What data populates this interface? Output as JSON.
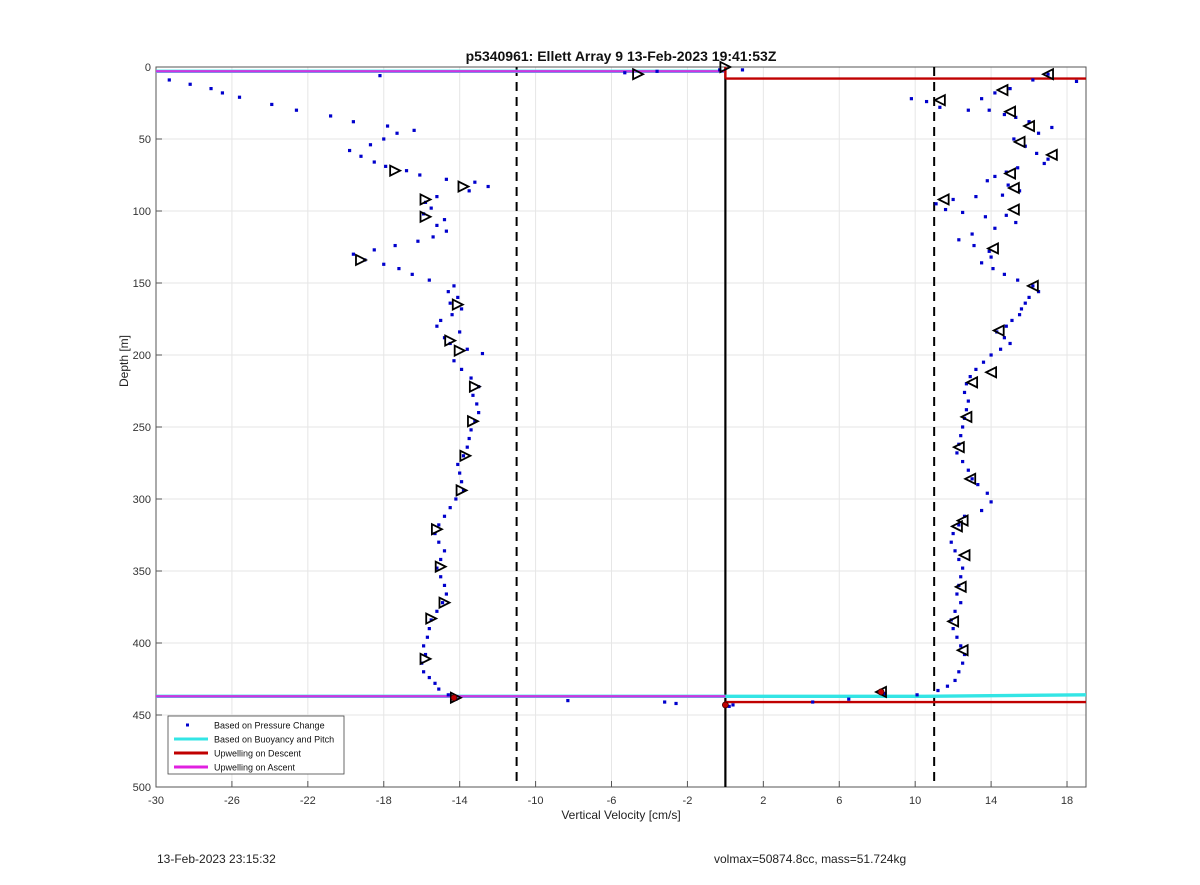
{
  "chart_data": {
    "type": "scatter",
    "title": "p5340961: Ellett Array 9 13-Feb-2023 19:41:53Z",
    "xlabel": "Vertical Velocity [cm/s]",
    "ylabel": "Depth [m]",
    "xlim": [
      -30,
      19
    ],
    "ylim": [
      0,
      500
    ],
    "y_reversed": true,
    "grid": true,
    "legend_position": "bottom-left",
    "xticks": [
      -30,
      -26,
      -22,
      -18,
      -14,
      -10,
      -6,
      -2,
      2,
      6,
      10,
      14,
      18
    ],
    "yticks": [
      0,
      50,
      100,
      150,
      200,
      250,
      300,
      350,
      400,
      450,
      500
    ],
    "reference_lines": {
      "solid_vertical_x": 0,
      "dashed_vertical_x": [
        -11,
        11
      ]
    },
    "series": [
      {
        "name": "Based on Pressure Change",
        "marker": "dot",
        "color": "#0000cc",
        "descent_points": [
          [
            17.0,
            5
          ],
          [
            18.5,
            10
          ],
          [
            16.2,
            9
          ],
          [
            15.0,
            15
          ],
          [
            14.2,
            18
          ],
          [
            13.5,
            22
          ],
          [
            9.8,
            22
          ],
          [
            10.6,
            24
          ],
          [
            11.3,
            28
          ],
          [
            12.8,
            30
          ],
          [
            13.9,
            30
          ],
          [
            14.7,
            33
          ],
          [
            15.3,
            35
          ],
          [
            16.0,
            38
          ],
          [
            17.2,
            42
          ],
          [
            16.5,
            46
          ],
          [
            15.2,
            50
          ],
          [
            15.8,
            55
          ],
          [
            16.4,
            60
          ],
          [
            17.0,
            64
          ],
          [
            16.8,
            67
          ],
          [
            15.4,
            70
          ],
          [
            14.8,
            73
          ],
          [
            14.2,
            76
          ],
          [
            13.8,
            79
          ],
          [
            14.9,
            82
          ],
          [
            15.5,
            86
          ],
          [
            14.6,
            89
          ],
          [
            13.2,
            90
          ],
          [
            12.0,
            92
          ],
          [
            11.1,
            95
          ],
          [
            11.6,
            99
          ],
          [
            12.5,
            101
          ],
          [
            13.7,
            104
          ],
          [
            14.8,
            103
          ],
          [
            15.3,
            108
          ],
          [
            14.2,
            112
          ],
          [
            13.0,
            116
          ],
          [
            12.3,
            120
          ],
          [
            13.1,
            124
          ],
          [
            13.9,
            128
          ],
          [
            14.0,
            132
          ],
          [
            13.5,
            136
          ],
          [
            14.1,
            140
          ],
          [
            14.7,
            144
          ],
          [
            15.4,
            148
          ],
          [
            16.2,
            152
          ],
          [
            16.5,
            156
          ],
          [
            16.0,
            160
          ],
          [
            15.8,
            164
          ],
          [
            15.6,
            168
          ],
          [
            15.5,
            172
          ],
          [
            15.1,
            176
          ],
          [
            14.8,
            180
          ],
          [
            14.3,
            184
          ],
          [
            14.7,
            188
          ],
          [
            15.0,
            192
          ],
          [
            14.5,
            196
          ],
          [
            14.0,
            200
          ],
          [
            13.6,
            205
          ],
          [
            13.2,
            210
          ],
          [
            12.9,
            215
          ],
          [
            12.7,
            220
          ],
          [
            12.6,
            226
          ],
          [
            12.8,
            232
          ],
          [
            12.7,
            238
          ],
          [
            12.6,
            244
          ],
          [
            12.5,
            250
          ],
          [
            12.4,
            256
          ],
          [
            12.3,
            262
          ],
          [
            12.2,
            268
          ],
          [
            12.5,
            274
          ],
          [
            12.8,
            280
          ],
          [
            13.0,
            286
          ],
          [
            13.3,
            290
          ],
          [
            13.8,
            296
          ],
          [
            14.0,
            302
          ],
          [
            13.5,
            308
          ],
          [
            12.6,
            312
          ],
          [
            12.3,
            318
          ],
          [
            12.0,
            324
          ],
          [
            11.9,
            330
          ],
          [
            12.1,
            336
          ],
          [
            12.3,
            342
          ],
          [
            12.5,
            348
          ],
          [
            12.4,
            354
          ],
          [
            12.3,
            360
          ],
          [
            12.2,
            366
          ],
          [
            12.4,
            372
          ],
          [
            12.1,
            378
          ],
          [
            11.9,
            384
          ],
          [
            12.0,
            390
          ],
          [
            12.2,
            396
          ],
          [
            12.4,
            402
          ],
          [
            12.6,
            408
          ],
          [
            12.5,
            414
          ],
          [
            12.3,
            420
          ],
          [
            12.1,
            426
          ],
          [
            11.7,
            430
          ],
          [
            11.2,
            433
          ],
          [
            10.1,
            436
          ],
          [
            8.4,
            435
          ],
          [
            6.5,
            439
          ],
          [
            4.6,
            441
          ],
          [
            0.4,
            443
          ],
          [
            0.2,
            444
          ]
        ],
        "ascent_points": [
          [
            0.0,
            443
          ],
          [
            -2.6,
            442
          ],
          [
            -3.2,
            441
          ],
          [
            -8.3,
            440
          ],
          [
            -14.2,
            439
          ],
          [
            -14.6,
            436
          ],
          [
            -15.1,
            432
          ],
          [
            -15.3,
            428
          ],
          [
            -15.6,
            424
          ],
          [
            -15.9,
            420
          ],
          [
            -16.0,
            414
          ],
          [
            -15.8,
            408
          ],
          [
            -15.9,
            402
          ],
          [
            -15.7,
            396
          ],
          [
            -15.6,
            390
          ],
          [
            -15.5,
            384
          ],
          [
            -15.2,
            378
          ],
          [
            -14.9,
            372
          ],
          [
            -14.7,
            366
          ],
          [
            -14.8,
            360
          ],
          [
            -15.0,
            354
          ],
          [
            -15.2,
            348
          ],
          [
            -15.0,
            342
          ],
          [
            -14.8,
            336
          ],
          [
            -15.1,
            330
          ],
          [
            -15.3,
            324
          ],
          [
            -15.1,
            318
          ],
          [
            -14.8,
            312
          ],
          [
            -14.5,
            306
          ],
          [
            -14.2,
            300
          ],
          [
            -13.8,
            294
          ],
          [
            -13.9,
            288
          ],
          [
            -14.0,
            282
          ],
          [
            -14.1,
            276
          ],
          [
            -13.8,
            270
          ],
          [
            -13.6,
            264
          ],
          [
            -13.5,
            258
          ],
          [
            -13.4,
            252
          ],
          [
            -13.2,
            246
          ],
          [
            -13.0,
            240
          ],
          [
            -13.1,
            234
          ],
          [
            -13.3,
            228
          ],
          [
            -13.0,
            222
          ],
          [
            -13.4,
            216
          ],
          [
            -13.9,
            210
          ],
          [
            -14.3,
            204
          ],
          [
            -12.8,
            199
          ],
          [
            -13.6,
            196
          ],
          [
            -14.5,
            192
          ],
          [
            -14.8,
            188
          ],
          [
            -14.0,
            184
          ],
          [
            -15.2,
            180
          ],
          [
            -15.0,
            176
          ],
          [
            -14.4,
            172
          ],
          [
            -13.9,
            168
          ],
          [
            -14.5,
            164
          ],
          [
            -14.1,
            160
          ],
          [
            -14.6,
            156
          ],
          [
            -14.3,
            152
          ],
          [
            -15.6,
            148
          ],
          [
            -16.5,
            144
          ],
          [
            -17.2,
            140
          ],
          [
            -18.0,
            137
          ],
          [
            -19.0,
            134
          ],
          [
            -19.6,
            130
          ],
          [
            -18.5,
            127
          ],
          [
            -17.4,
            124
          ],
          [
            -16.2,
            121
          ],
          [
            -15.4,
            118
          ],
          [
            -14.7,
            114
          ],
          [
            -15.2,
            110
          ],
          [
            -14.8,
            106
          ],
          [
            -15.9,
            102
          ],
          [
            -15.5,
            98
          ],
          [
            -15.8,
            94
          ],
          [
            -15.2,
            90
          ],
          [
            -13.5,
            86
          ],
          [
            -12.5,
            83
          ],
          [
            -13.2,
            80
          ],
          [
            -14.7,
            78
          ],
          [
            -16.1,
            75
          ],
          [
            -16.8,
            72
          ],
          [
            -17.9,
            69
          ],
          [
            -18.5,
            66
          ],
          [
            -19.2,
            62
          ],
          [
            -19.8,
            58
          ],
          [
            -18.7,
            54
          ],
          [
            -18.0,
            50
          ],
          [
            -17.3,
            46
          ],
          [
            -16.4,
            44
          ],
          [
            -17.8,
            41
          ],
          [
            -19.6,
            38
          ],
          [
            -20.8,
            34
          ],
          [
            -22.6,
            30
          ],
          [
            -23.9,
            26
          ],
          [
            -25.6,
            21
          ],
          [
            -26.5,
            18
          ],
          [
            -27.1,
            15
          ],
          [
            -28.2,
            12
          ],
          [
            -29.3,
            9
          ],
          [
            -18.2,
            6
          ],
          [
            -5.3,
            4
          ],
          [
            -3.6,
            3
          ],
          [
            -0.3,
            2
          ],
          [
            0.9,
            2
          ]
        ]
      },
      {
        "name": "Based on Buoyancy and Pitch",
        "marker": "triangle",
        "color": "#000000",
        "descent_points": [
          [
            17.0,
            5
          ],
          [
            14.6,
            16
          ],
          [
            11.3,
            23
          ],
          [
            15.0,
            31
          ],
          [
            16.0,
            41
          ],
          [
            15.5,
            52
          ],
          [
            17.2,
            61
          ],
          [
            15.0,
            74
          ],
          [
            15.2,
            84
          ],
          [
            11.5,
            92
          ],
          [
            15.2,
            99
          ],
          [
            14.1,
            126
          ],
          [
            16.2,
            152
          ],
          [
            14.4,
            183
          ],
          [
            14.0,
            212
          ],
          [
            13.0,
            219
          ],
          [
            12.7,
            243
          ],
          [
            12.3,
            264
          ],
          [
            12.9,
            286
          ],
          [
            12.5,
            315
          ],
          [
            12.2,
            319
          ],
          [
            12.6,
            339
          ],
          [
            12.4,
            361
          ],
          [
            12.0,
            385
          ],
          [
            12.5,
            405
          ],
          [
            8.2,
            434
          ]
        ],
        "ascent_points": [
          [
            -4.6,
            5
          ],
          [
            -17.4,
            72
          ],
          [
            -13.8,
            83
          ],
          [
            -15.8,
            92
          ],
          [
            -15.8,
            104
          ],
          [
            -19.2,
            134
          ],
          [
            -14.1,
            165
          ],
          [
            -14.5,
            190
          ],
          [
            -14.0,
            197
          ],
          [
            -13.2,
            222
          ],
          [
            -13.3,
            246
          ],
          [
            -13.7,
            270
          ],
          [
            -13.9,
            294
          ],
          [
            -15.2,
            321
          ],
          [
            -15.0,
            347
          ],
          [
            -14.8,
            372
          ],
          [
            -15.5,
            383
          ],
          [
            -15.8,
            411
          ],
          [
            -14.2,
            438
          ],
          [
            0.0,
            0
          ]
        ]
      },
      {
        "name": "Upwelling on Descent",
        "color": "#c00000",
        "lines": [
          {
            "x": [
              0,
              19
            ],
            "y": [
              8,
              8
            ]
          },
          {
            "x": [
              0,
              19
            ],
            "y": [
              441,
              441
            ]
          },
          {
            "x": [
              0,
              0
            ],
            "y": [
              0,
              8
            ]
          }
        ],
        "markers": [
          [
            8.2,
            434
          ],
          [
            0.0,
            443
          ],
          [
            -14.3,
            438
          ]
        ]
      },
      {
        "name": "Upwelling on Ascent",
        "color": "#e020e0",
        "lines": [
          {
            "x": [
              -30,
              0
            ],
            "y": [
              3,
              3
            ]
          },
          {
            "x": [
              -30,
              0
            ],
            "y": [
              437,
              437
            ]
          }
        ]
      },
      {
        "name": "Based on Buoyancy and Pitch (reference)",
        "color": "#33e5e5",
        "lines": [
          {
            "x": [
              -30,
              0
            ],
            "y": [
              3,
              3
            ]
          },
          {
            "x": [
              -30,
              0
            ],
            "y": [
              437,
              437
            ]
          },
          {
            "x": [
              0,
              10.5,
              19
            ],
            "y": [
              437,
              437,
              436
            ]
          }
        ]
      }
    ],
    "legend": [
      {
        "label": "Based on Pressure Change",
        "style": "dot",
        "color": "#0000cc"
      },
      {
        "label": "Based on Buoyancy and Pitch",
        "style": "line",
        "color": "#33e5e5"
      },
      {
        "label": "Upwelling on Descent",
        "style": "line",
        "color": "#c00000"
      },
      {
        "label": "Upwelling on Ascent",
        "style": "line",
        "color": "#e020e0"
      }
    ]
  },
  "footer": {
    "left": "13-Feb-2023 23:15:32",
    "right": "volmax=50874.8cc, mass=51.724kg"
  }
}
